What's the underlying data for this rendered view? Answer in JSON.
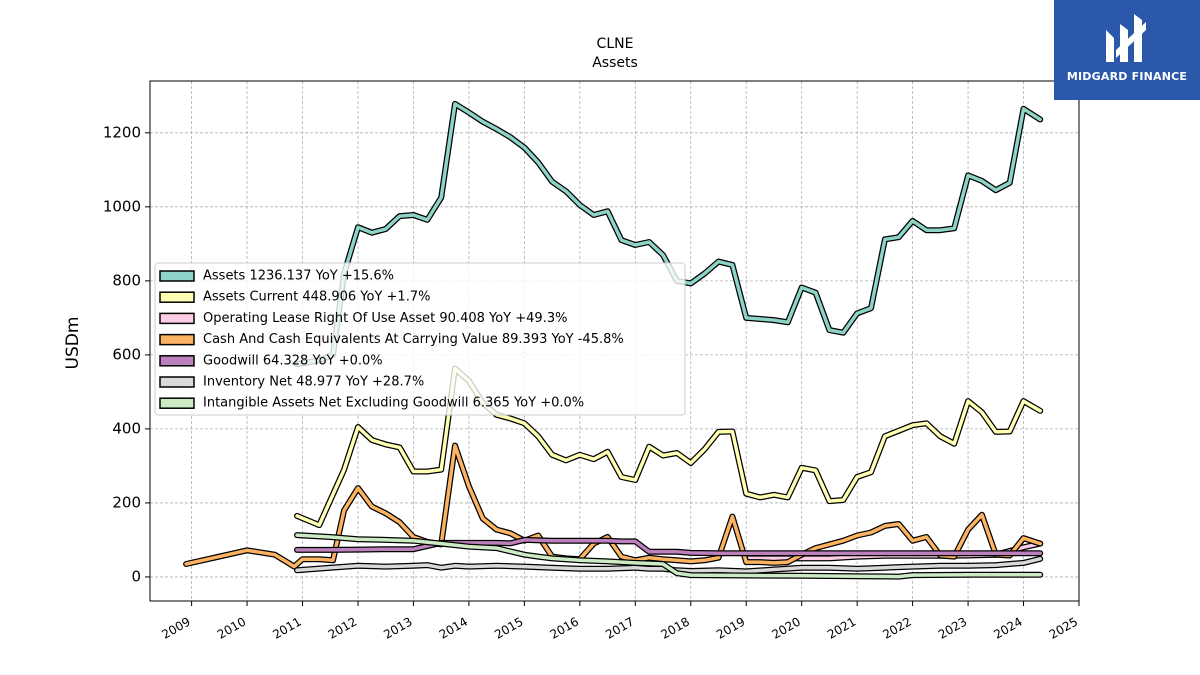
{
  "brand": {
    "name": "MIDGARD FINANCE",
    "color": "#2b58ab"
  },
  "chart_data": {
    "type": "line",
    "title": "CLNE",
    "subtitle": "Assets",
    "ylabel": "USDm",
    "xlim": [
      2008.25,
      2025.0
    ],
    "ylim": [
      -65,
      1340
    ],
    "x_ticks": [
      "2009",
      "2010",
      "2011",
      "2012",
      "2013",
      "2014",
      "2015",
      "2016",
      "2017",
      "2018",
      "2019",
      "2020",
      "2021",
      "2022",
      "2023",
      "2024",
      "2025"
    ],
    "y_ticks": [
      "0",
      "200",
      "400",
      "600",
      "800",
      "1000",
      "1200"
    ],
    "grid": true,
    "legend_position": "center-left",
    "series": [
      {
        "name": "Assets",
        "legend": "Assets  1236.137 YoY +15.6%",
        "color": "#8dd3c7",
        "points": [
          [
            2010.9,
            575
          ],
          [
            2011.3,
            585
          ],
          [
            2011.55,
            600
          ],
          [
            2011.75,
            820
          ],
          [
            2012.0,
            945
          ],
          [
            2012.25,
            930
          ],
          [
            2012.5,
            940
          ],
          [
            2012.75,
            975
          ],
          [
            2013.0,
            978
          ],
          [
            2013.25,
            965
          ],
          [
            2013.5,
            1025
          ],
          [
            2013.75,
            1278
          ],
          [
            2014.0,
            1255
          ],
          [
            2014.25,
            1230
          ],
          [
            2014.5,
            1210
          ],
          [
            2014.75,
            1188
          ],
          [
            2015.0,
            1160
          ],
          [
            2015.25,
            1120
          ],
          [
            2015.5,
            1068
          ],
          [
            2015.75,
            1042
          ],
          [
            2016.0,
            1005
          ],
          [
            2016.25,
            978
          ],
          [
            2016.5,
            988
          ],
          [
            2016.75,
            910
          ],
          [
            2017.0,
            897
          ],
          [
            2017.25,
            905
          ],
          [
            2017.5,
            870
          ],
          [
            2017.75,
            800
          ],
          [
            2018.0,
            793
          ],
          [
            2018.25,
            820
          ],
          [
            2018.5,
            852
          ],
          [
            2018.75,
            843
          ],
          [
            2019.0,
            700
          ],
          [
            2019.25,
            697
          ],
          [
            2019.5,
            694
          ],
          [
            2019.75,
            688
          ],
          [
            2020.0,
            782
          ],
          [
            2020.25,
            768
          ],
          [
            2020.5,
            667
          ],
          [
            2020.75,
            660
          ],
          [
            2021.0,
            712
          ],
          [
            2021.25,
            726
          ],
          [
            2021.5,
            912
          ],
          [
            2021.75,
            918
          ],
          [
            2022.0,
            962
          ],
          [
            2022.25,
            937
          ],
          [
            2022.5,
            937
          ],
          [
            2022.75,
            942
          ],
          [
            2023.0,
            1085
          ],
          [
            2023.25,
            1070
          ],
          [
            2023.5,
            1045
          ],
          [
            2023.75,
            1065
          ],
          [
            2024.0,
            1265
          ],
          [
            2024.3,
            1236
          ]
        ]
      },
      {
        "name": "Assets Current",
        "legend": "Assets Current  448.906 YoY +1.7%",
        "color": "#ffffb3",
        "points": [
          [
            2010.9,
            165
          ],
          [
            2011.3,
            140
          ],
          [
            2011.75,
            290
          ],
          [
            2012.0,
            405
          ],
          [
            2012.25,
            370
          ],
          [
            2012.5,
            358
          ],
          [
            2012.75,
            350
          ],
          [
            2013.0,
            285
          ],
          [
            2013.25,
            285
          ],
          [
            2013.5,
            290
          ],
          [
            2013.75,
            563
          ],
          [
            2014.0,
            530
          ],
          [
            2014.25,
            470
          ],
          [
            2014.5,
            438
          ],
          [
            2014.75,
            428
          ],
          [
            2015.0,
            415
          ],
          [
            2015.25,
            380
          ],
          [
            2015.5,
            330
          ],
          [
            2015.75,
            315
          ],
          [
            2016.0,
            330
          ],
          [
            2016.25,
            318
          ],
          [
            2016.5,
            338
          ],
          [
            2016.75,
            270
          ],
          [
            2017.0,
            262
          ],
          [
            2017.25,
            352
          ],
          [
            2017.5,
            328
          ],
          [
            2017.75,
            335
          ],
          [
            2018.0,
            308
          ],
          [
            2018.25,
            345
          ],
          [
            2018.5,
            392
          ],
          [
            2018.75,
            393
          ],
          [
            2019.0,
            225
          ],
          [
            2019.25,
            215
          ],
          [
            2019.5,
            222
          ],
          [
            2019.75,
            215
          ],
          [
            2020.0,
            295
          ],
          [
            2020.25,
            288
          ],
          [
            2020.5,
            205
          ],
          [
            2020.75,
            208
          ],
          [
            2021.0,
            270
          ],
          [
            2021.25,
            283
          ],
          [
            2021.5,
            380
          ],
          [
            2021.75,
            395
          ],
          [
            2022.0,
            410
          ],
          [
            2022.25,
            415
          ],
          [
            2022.5,
            380
          ],
          [
            2022.75,
            360
          ],
          [
            2023.0,
            475
          ],
          [
            2023.25,
            445
          ],
          [
            2023.5,
            392
          ],
          [
            2023.75,
            393
          ],
          [
            2024.0,
            475
          ],
          [
            2024.3,
            449
          ]
        ]
      },
      {
        "name": "Operating Lease Right Of Use Asset",
        "legend": "Operating Lease Right Of Use Asset  90.408 YoY +49.3%",
        "color": "#fccde5",
        "points": [
          [
            2019.0,
            50
          ],
          [
            2019.5,
            50
          ],
          [
            2020.0,
            50
          ],
          [
            2020.5,
            50
          ],
          [
            2021.0,
            55
          ],
          [
            2021.5,
            57
          ],
          [
            2022.0,
            57
          ],
          [
            2022.5,
            57
          ],
          [
            2023.0,
            58
          ],
          [
            2023.5,
            60
          ],
          [
            2024.0,
            80
          ],
          [
            2024.3,
            90
          ]
        ]
      },
      {
        "name": "Cash And Cash Equivalents At Carrying Value",
        "legend": "Cash And Cash Equivalents At Carrying Value  89.393 YoY -45.8%",
        "color": "#fdb462",
        "points": [
          [
            2008.9,
            35
          ],
          [
            2009.5,
            55
          ],
          [
            2010.0,
            72
          ],
          [
            2010.5,
            60
          ],
          [
            2010.7,
            42
          ],
          [
            2010.85,
            28
          ],
          [
            2011.0,
            48
          ],
          [
            2011.3,
            48
          ],
          [
            2011.55,
            45
          ],
          [
            2011.75,
            180
          ],
          [
            2012.0,
            240
          ],
          [
            2012.25,
            190
          ],
          [
            2012.5,
            172
          ],
          [
            2012.75,
            148
          ],
          [
            2013.0,
            108
          ],
          [
            2013.25,
            95
          ],
          [
            2013.5,
            88
          ],
          [
            2013.75,
            355
          ],
          [
            2014.0,
            245
          ],
          [
            2014.25,
            158
          ],
          [
            2014.5,
            128
          ],
          [
            2014.75,
            118
          ],
          [
            2015.0,
            98
          ],
          [
            2015.25,
            112
          ],
          [
            2015.5,
            55
          ],
          [
            2015.75,
            50
          ],
          [
            2016.0,
            48
          ],
          [
            2016.25,
            90
          ],
          [
            2016.5,
            108
          ],
          [
            2016.75,
            55
          ],
          [
            2017.0,
            45
          ],
          [
            2017.25,
            52
          ],
          [
            2017.5,
            48
          ],
          [
            2017.75,
            45
          ],
          [
            2018.0,
            42
          ],
          [
            2018.25,
            45
          ],
          [
            2018.5,
            52
          ],
          [
            2018.75,
            163
          ],
          [
            2019.0,
            40
          ],
          [
            2019.25,
            40
          ],
          [
            2019.5,
            38
          ],
          [
            2019.75,
            40
          ],
          [
            2020.0,
            60
          ],
          [
            2020.25,
            78
          ],
          [
            2020.5,
            88
          ],
          [
            2020.75,
            98
          ],
          [
            2021.0,
            112
          ],
          [
            2021.25,
            120
          ],
          [
            2021.5,
            138
          ],
          [
            2021.75,
            143
          ],
          [
            2022.0,
            98
          ],
          [
            2022.25,
            108
          ],
          [
            2022.5,
            58
          ],
          [
            2022.75,
            55
          ],
          [
            2023.0,
            128
          ],
          [
            2023.25,
            168
          ],
          [
            2023.5,
            60
          ],
          [
            2023.75,
            58
          ],
          [
            2024.0,
            105
          ],
          [
            2024.3,
            90
          ]
        ]
      },
      {
        "name": "Goodwill",
        "legend": "Goodwill  64.328 YoY +0.0%",
        "color": "#bc80bd",
        "points": [
          [
            2010.9,
            73
          ],
          [
            2011.5,
            73
          ],
          [
            2012.0,
            74
          ],
          [
            2012.5,
            75
          ],
          [
            2013.0,
            75
          ],
          [
            2013.5,
            92
          ],
          [
            2014.0,
            92
          ],
          [
            2014.5,
            92
          ],
          [
            2014.75,
            91
          ],
          [
            2015.0,
            100
          ],
          [
            2015.5,
            98
          ],
          [
            2016.0,
            98
          ],
          [
            2016.5,
            98
          ],
          [
            2016.75,
            96
          ],
          [
            2017.0,
            96
          ],
          [
            2017.25,
            68
          ],
          [
            2017.5,
            68
          ],
          [
            2017.75,
            68
          ],
          [
            2018.0,
            65
          ],
          [
            2018.5,
            64
          ],
          [
            2019.0,
            64
          ],
          [
            2020.0,
            64
          ],
          [
            2021.0,
            64
          ],
          [
            2022.0,
            64
          ],
          [
            2023.0,
            64
          ],
          [
            2024.3,
            64
          ]
        ]
      },
      {
        "name": "Inventory Net",
        "legend": "Inventory Net  48.977 YoY +28.7%",
        "color": "#d9d9d9",
        "points": [
          [
            2010.9,
            18
          ],
          [
            2011.5,
            25
          ],
          [
            2012.0,
            30
          ],
          [
            2012.5,
            28
          ],
          [
            2013.0,
            30
          ],
          [
            2013.25,
            32
          ],
          [
            2013.5,
            25
          ],
          [
            2013.75,
            30
          ],
          [
            2014.0,
            28
          ],
          [
            2014.5,
            30
          ],
          [
            2015.0,
            28
          ],
          [
            2015.5,
            25
          ],
          [
            2016.0,
            22
          ],
          [
            2016.5,
            22
          ],
          [
            2017.0,
            25
          ],
          [
            2017.25,
            22
          ],
          [
            2017.5,
            22
          ],
          [
            2017.75,
            18
          ],
          [
            2018.0,
            16
          ],
          [
            2018.5,
            18
          ],
          [
            2019.0,
            15
          ],
          [
            2019.5,
            20
          ],
          [
            2020.0,
            25
          ],
          [
            2020.5,
            25
          ],
          [
            2021.0,
            22
          ],
          [
            2021.5,
            25
          ],
          [
            2022.0,
            28
          ],
          [
            2022.5,
            30
          ],
          [
            2023.0,
            30
          ],
          [
            2023.5,
            32
          ],
          [
            2024.0,
            38
          ],
          [
            2024.3,
            49
          ]
        ]
      },
      {
        "name": "Intangible Assets Net Excluding Goodwill",
        "legend": "Intangible Assets Net Excluding Goodwill  6.365 YoY +0.0%",
        "color": "#ccebc5",
        "points": [
          [
            2010.9,
            113
          ],
          [
            2011.5,
            108
          ],
          [
            2012.0,
            102
          ],
          [
            2012.5,
            100
          ],
          [
            2013.0,
            98
          ],
          [
            2013.5,
            90
          ],
          [
            2014.0,
            82
          ],
          [
            2014.5,
            78
          ],
          [
            2015.0,
            60
          ],
          [
            2015.25,
            55
          ],
          [
            2015.5,
            50
          ],
          [
            2016.0,
            45
          ],
          [
            2016.5,
            42
          ],
          [
            2017.0,
            38
          ],
          [
            2017.5,
            35
          ],
          [
            2017.75,
            10
          ],
          [
            2018.0,
            5
          ],
          [
            2019.0,
            4
          ],
          [
            2020.0,
            3
          ],
          [
            2021.0,
            2
          ],
          [
            2021.75,
            1
          ],
          [
            2022.0,
            5
          ],
          [
            2023.0,
            6
          ],
          [
            2024.0,
            6
          ],
          [
            2024.3,
            6
          ]
        ]
      }
    ]
  }
}
